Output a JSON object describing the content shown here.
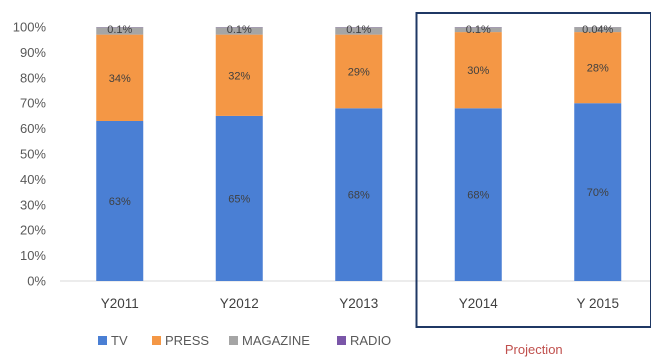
{
  "chart_data": {
    "type": "bar",
    "stacked": true,
    "categories": [
      "Y2011",
      "Y2012",
      "Y2013",
      "Y2014",
      "Y 2015"
    ],
    "series": [
      {
        "name": "TV",
        "color": "#4a7fd4",
        "values": [
          63,
          65,
          68,
          68,
          70
        ],
        "labels": [
          "63%",
          "65%",
          "68%",
          "68%",
          "70%"
        ]
      },
      {
        "name": "PRESS",
        "color": "#f49745",
        "values": [
          34,
          32,
          29,
          30,
          28
        ],
        "labels": [
          "34%",
          "32%",
          "29%",
          "30%",
          "28%"
        ]
      },
      {
        "name": "MAGAZINE",
        "color": "#a5a5a5",
        "values": [
          2.9,
          2.9,
          2.9,
          1.9,
          1.96
        ],
        "labels": [
          "",
          "",
          "",
          "",
          ""
        ]
      },
      {
        "name": "RADIO",
        "color": "#7a56a8",
        "values": [
          0.1,
          0.1,
          0.1,
          0.1,
          0.04
        ],
        "labels": [
          "0.1%",
          "0.1%",
          "0.1%",
          "0.1%",
          "0.04%"
        ]
      }
    ],
    "yticks": [
      "0%",
      "10%",
      "20%",
      "30%",
      "40%",
      "50%",
      "60%",
      "70%",
      "80%",
      "90%",
      "100%"
    ],
    "ylim": [
      0,
      100
    ],
    "grid": false,
    "legend_position": "bottom-left",
    "annotation": {
      "label": "Projection",
      "categories": [
        "Y2014",
        "Y 2015"
      ],
      "color": "#1f3864",
      "text_color": "#c0504d"
    }
  }
}
